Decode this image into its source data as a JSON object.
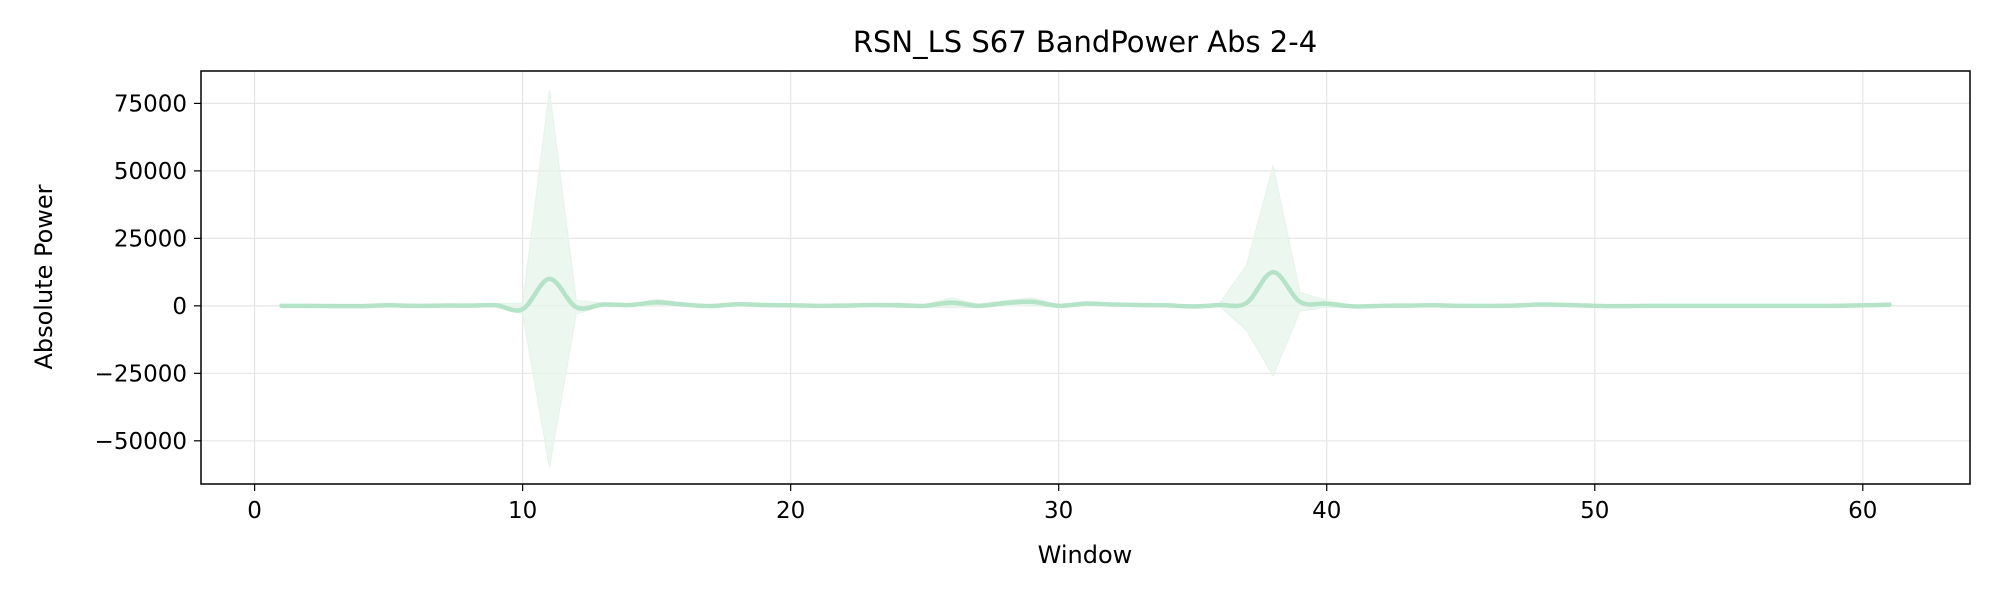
{
  "chart_data": {
    "type": "line",
    "title": "RSN_LS S67 BandPower Abs 2-4",
    "xlabel": "Window",
    "ylabel": "Absolute Power",
    "xlim": [
      -2,
      64
    ],
    "ylim": [
      -66000,
      87000
    ],
    "xticks": [
      0,
      10,
      20,
      30,
      40,
      50,
      60
    ],
    "xtick_labels": [
      "0",
      "10",
      "20",
      "30",
      "40",
      "50",
      "60"
    ],
    "yticks": [
      -50000,
      -25000,
      0,
      25000,
      50000,
      75000
    ],
    "ytick_labels": [
      "−50000",
      "−25000",
      "0",
      "25000",
      "50000",
      "75000"
    ],
    "grid": true,
    "colors": {
      "line": "#b5e3c8",
      "band": "#e4f4ea",
      "axis": "#000000",
      "grid": "#e6e6e6"
    },
    "series": [
      {
        "x": [
          1,
          2,
          3,
          4,
          5,
          6,
          7,
          8,
          9,
          10,
          11,
          12,
          13,
          14,
          15,
          16,
          17,
          18,
          19,
          20,
          21,
          22,
          23,
          24,
          25,
          26,
          27,
          28,
          29,
          30,
          31,
          32,
          33,
          34,
          35,
          36,
          37,
          38,
          39,
          40,
          41,
          42,
          43,
          44,
          45,
          46,
          47,
          48,
          49,
          50,
          51,
          52,
          53,
          54,
          55,
          56,
          57,
          58,
          59,
          60,
          61
        ],
        "values": [
          0,
          0,
          -100,
          -100,
          200,
          0,
          100,
          100,
          200,
          -1200,
          10000,
          -500,
          500,
          300,
          1300,
          500,
          -100,
          600,
          300,
          200,
          0,
          100,
          300,
          200,
          0,
          1200,
          0,
          1000,
          1500,
          0,
          800,
          500,
          300,
          200,
          -200,
          300,
          1000,
          12500,
          1500,
          800,
          -200,
          0,
          100,
          200,
          0,
          0,
          100,
          500,
          300,
          0,
          -100,
          0,
          0,
          0,
          0,
          0,
          0,
          0,
          0,
          200,
          400
        ],
        "upper": [
          0,
          0,
          0,
          100,
          400,
          100,
          200,
          300,
          800,
          1000,
          80000,
          2000,
          1000,
          500,
          2500,
          1000,
          200,
          1000,
          500,
          400,
          200,
          300,
          500,
          1000,
          500,
          3000,
          600,
          2000,
          3000,
          500,
          1500,
          1000,
          500,
          400,
          100,
          800,
          15000,
          52000,
          5000,
          2000,
          200,
          300,
          200,
          300,
          200,
          200,
          300,
          900,
          500,
          200,
          100,
          100,
          100,
          100,
          100,
          100,
          100,
          100,
          100,
          400,
          600
        ],
        "lower": [
          0,
          0,
          -200,
          -300,
          0,
          -100,
          0,
          -100,
          -400,
          -3000,
          -60000,
          -3000,
          0,
          0,
          200,
          0,
          -400,
          200,
          100,
          0,
          -200,
          -100,
          100,
          -600,
          -500,
          -600,
          -600,
          0,
          0,
          -500,
          0,
          0,
          0,
          0,
          -500,
          -200,
          -9000,
          -26000,
          -2000,
          -500,
          -600,
          -300,
          0,
          100,
          -200,
          -200,
          -100,
          100,
          100,
          -200,
          -300,
          -100,
          -100,
          -100,
          -100,
          -100,
          -100,
          -100,
          -100,
          0,
          200
        ]
      }
    ]
  }
}
